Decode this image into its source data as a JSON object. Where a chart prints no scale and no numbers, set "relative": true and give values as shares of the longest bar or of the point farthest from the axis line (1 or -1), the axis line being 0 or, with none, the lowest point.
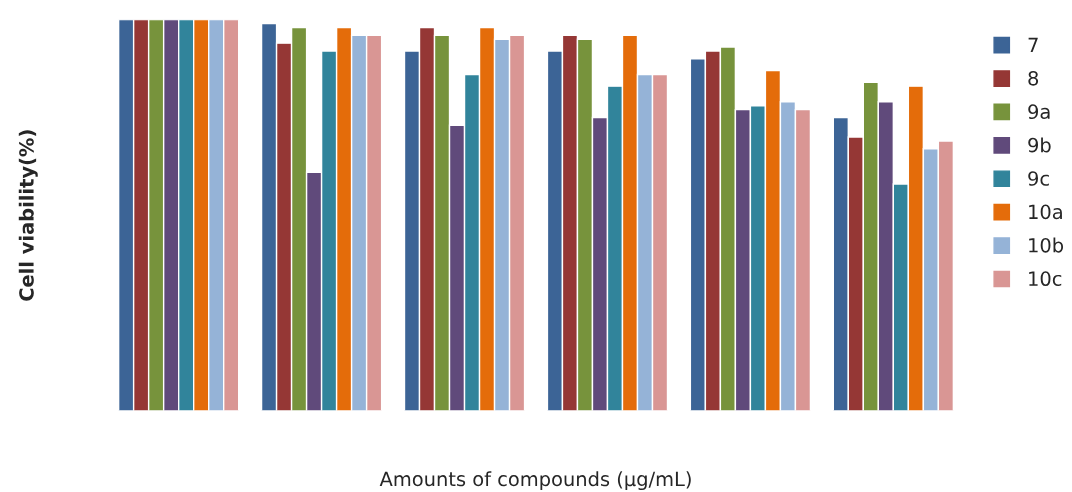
{
  "chart_data": {
    "type": "bar",
    "relative": true,
    "xlabel": "Amounts of compounds (μg/mL)",
    "ylabel": "Cell viability(%)",
    "categories": [
      null,
      null,
      null,
      null,
      null,
      null
    ],
    "series": [
      {
        "name": "7",
        "color": "#3c6496",
        "values": [
          1,
          0.99,
          0.92,
          0.92,
          0.9,
          0.75
        ]
      },
      {
        "name": "8",
        "color": "#953735",
        "values": [
          1,
          0.94,
          0.98,
          0.96,
          0.92,
          0.7
        ]
      },
      {
        "name": "9a",
        "color": "#77933c",
        "values": [
          1,
          0.98,
          0.96,
          0.95,
          0.93,
          0.84
        ]
      },
      {
        "name": "9b",
        "color": "#604a7b",
        "values": [
          1,
          0.61,
          0.73,
          0.75,
          0.77,
          0.79
        ]
      },
      {
        "name": "9c",
        "color": "#31849b",
        "values": [
          1,
          0.92,
          0.86,
          0.83,
          0.78,
          0.58
        ]
      },
      {
        "name": "10a",
        "color": "#e46c0a",
        "values": [
          1,
          0.98,
          0.98,
          0.96,
          0.87,
          0.83
        ]
      },
      {
        "name": "10b",
        "color": "#95b3d7",
        "values": [
          1,
          0.96,
          0.95,
          0.86,
          0.79,
          0.67
        ]
      },
      {
        "name": "10c",
        "color": "#d99694",
        "values": [
          1,
          0.96,
          0.96,
          0.86,
          0.77,
          0.69
        ]
      }
    ],
    "legend": "right",
    "grid": false
  }
}
